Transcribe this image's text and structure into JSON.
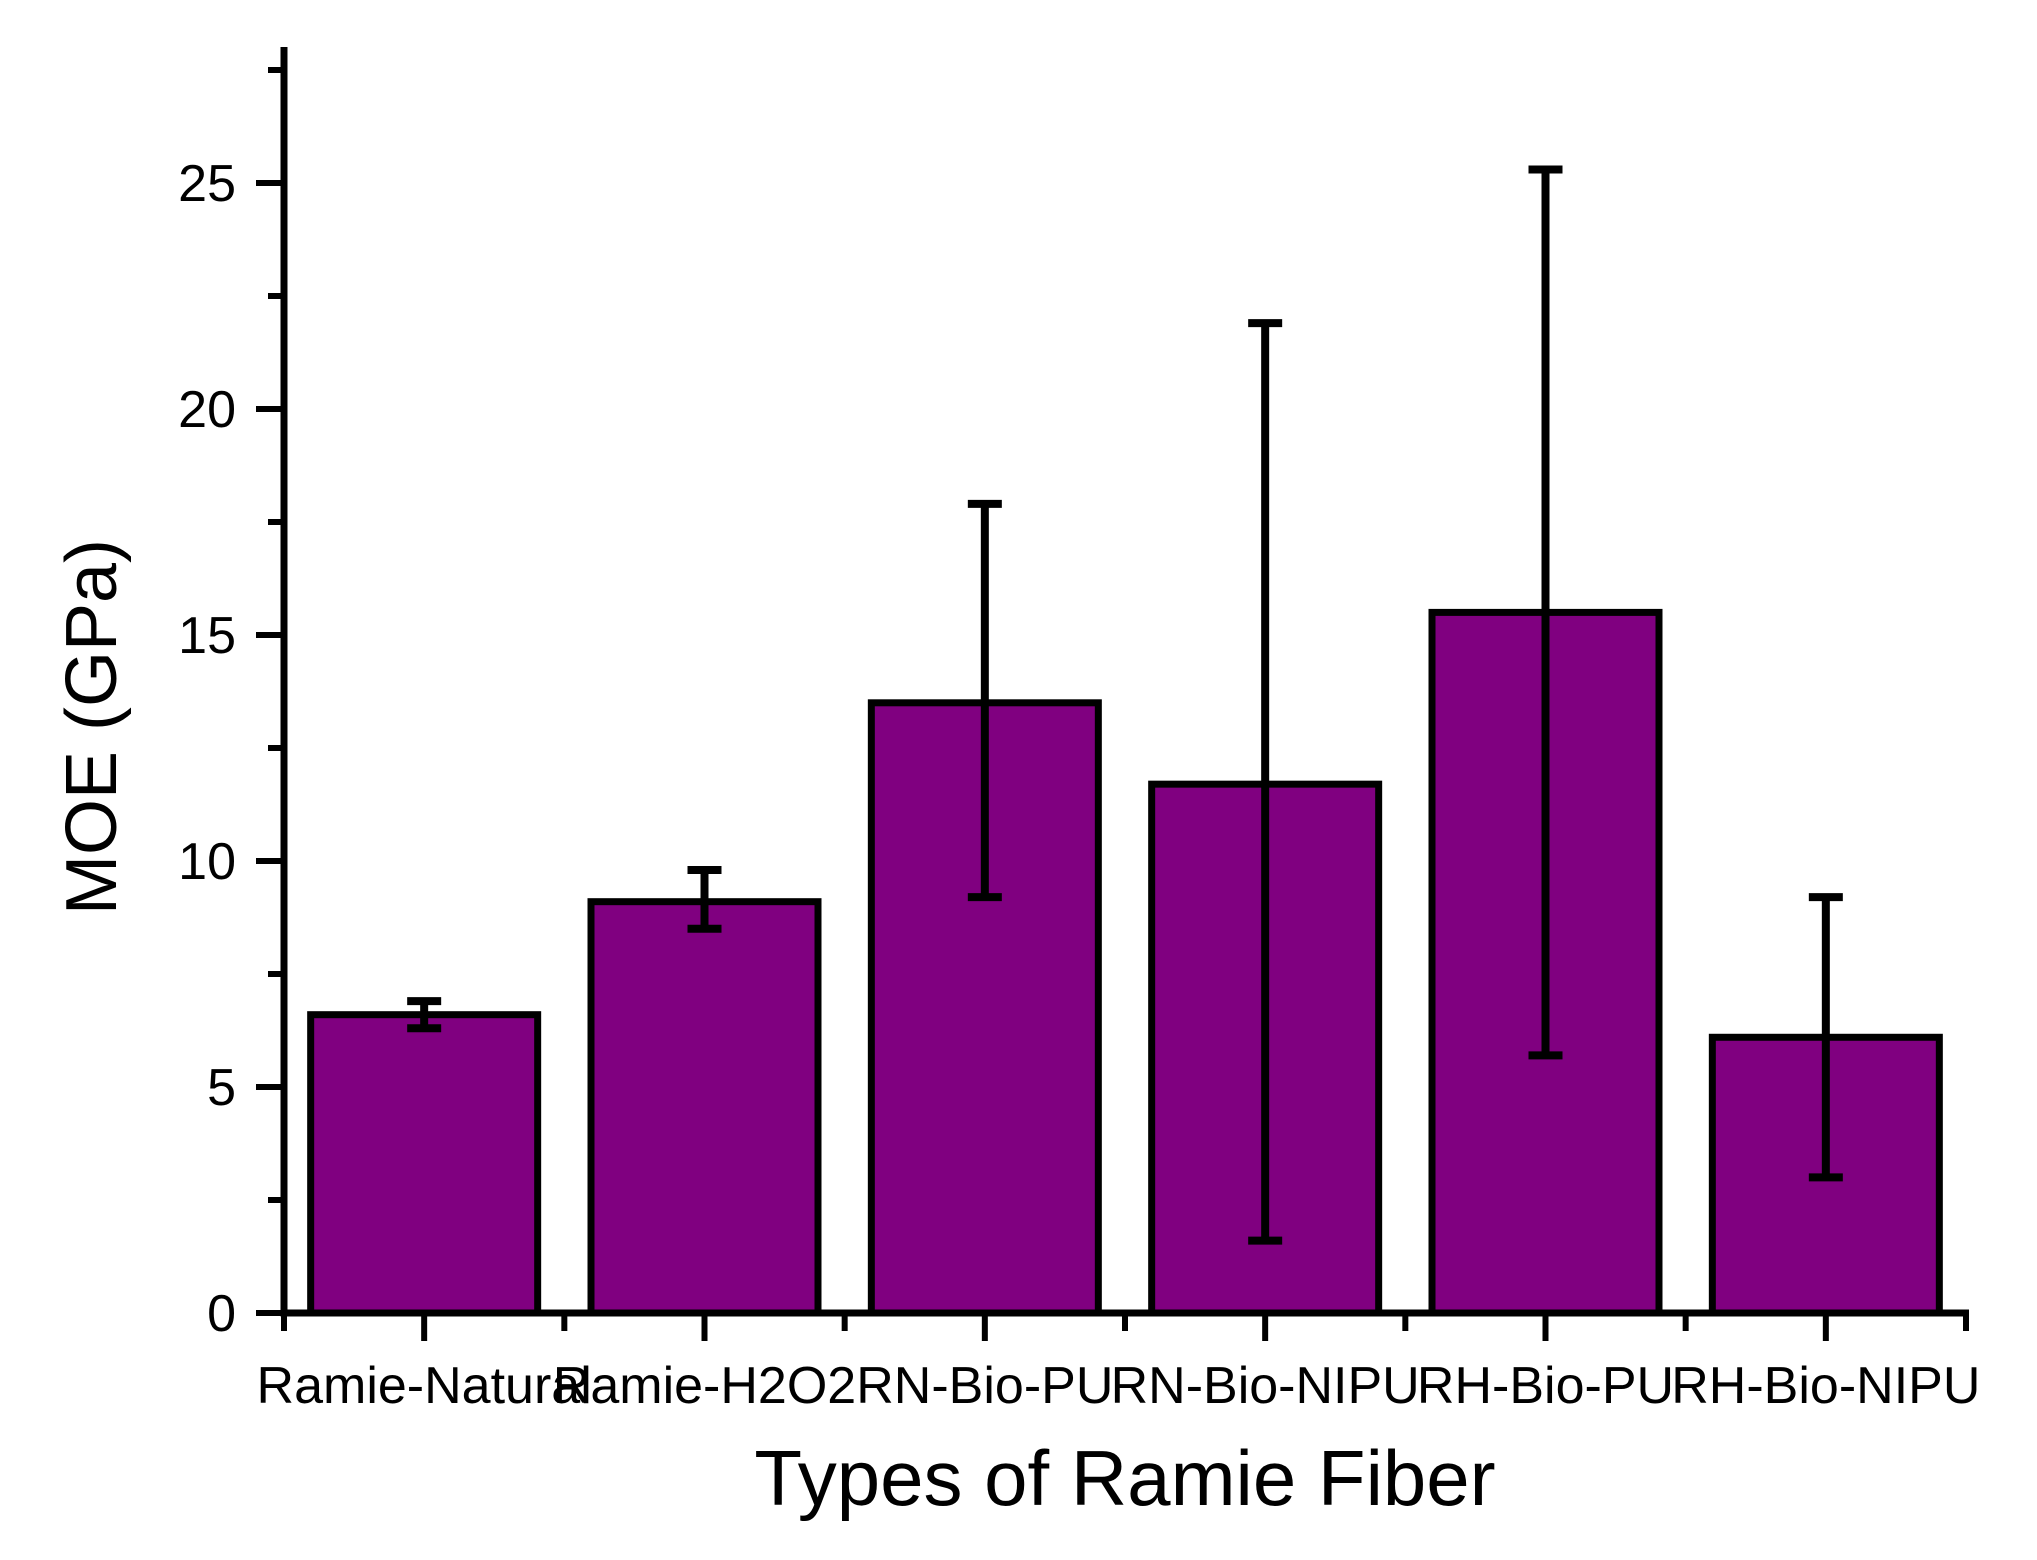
{
  "chart_data": {
    "type": "bar",
    "title": "",
    "xlabel": "Types of Ramie Fiber",
    "ylabel": "MOE (GPa)",
    "categories": [
      "Ramie-Natural",
      "Ramie-H2O2",
      "RN-Bio-PU",
      "RN-Bio-NIPU",
      "RH-Bio-PU",
      "RH-Bio-NIPU"
    ],
    "series": [
      {
        "name": "MOE",
        "values": [
          6.6,
          9.1,
          13.5,
          11.7,
          15.5,
          6.1
        ],
        "error_low": [
          6.3,
          8.5,
          9.2,
          1.6,
          5.7,
          3.0
        ],
        "error_high": [
          6.9,
          9.8,
          17.9,
          21.9,
          25.3,
          9.2
        ]
      }
    ],
    "ylim": [
      0,
      28
    ],
    "yticks_major": [
      0,
      5,
      10,
      15,
      20,
      25
    ],
    "yticks_minor": [
      2.5,
      7.5,
      12.5,
      17.5,
      22.5,
      27.5
    ],
    "ytick_labels": [
      "0",
      "5",
      "10",
      "15",
      "20",
      "25"
    ],
    "grid": "off",
    "legend": "none",
    "bar_color": "#800080",
    "bar_edge_color": "#000000",
    "axis_color": "#000000",
    "background_color": "#ffffff"
  }
}
